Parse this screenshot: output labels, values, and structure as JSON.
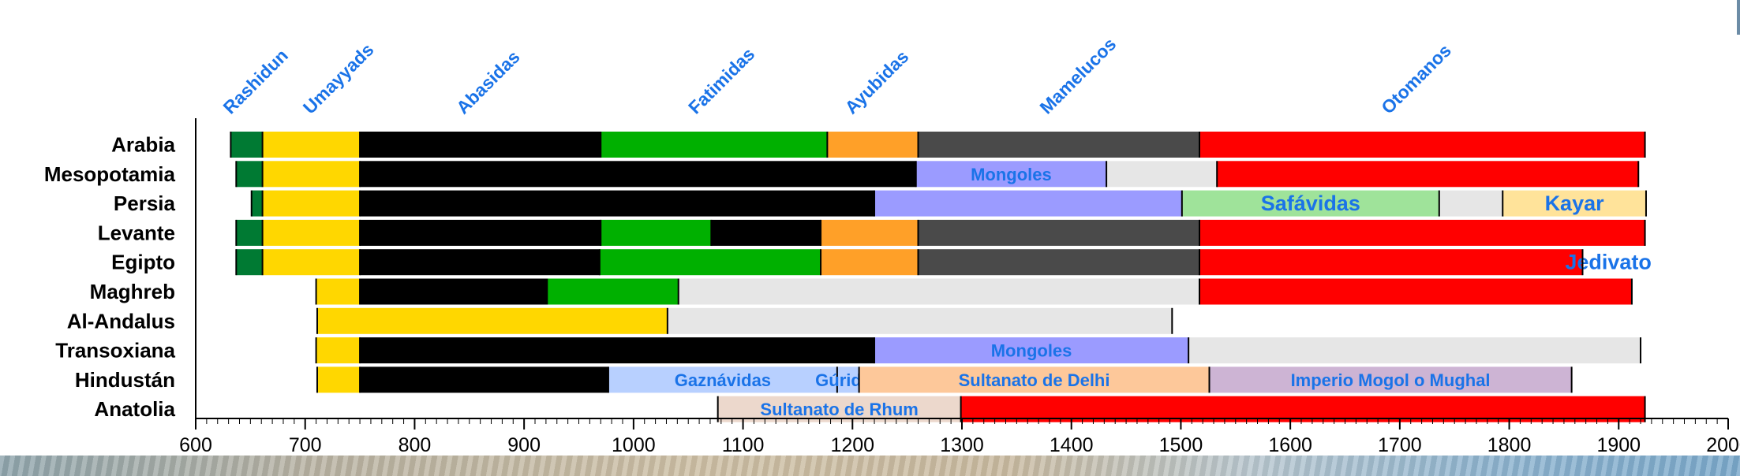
{
  "colors": {
    "rashidun": "#007a33",
    "umayyads": "#ffd700",
    "abasidas": "#000000",
    "fatimidas": "#00b000",
    "ayubidas": "#ffa028",
    "mamelucos": "#4a4a4a",
    "otomanos": "#ff0000",
    "mongoles": "#9b9bff",
    "safavidas": "#9fe39a",
    "kayar": "#ffe39a",
    "other": "#e6e6e6",
    "gaznavidas": "#b8d0ff",
    "sultanato_delhi": "#fdc89a",
    "mogol": "#cdb4d4",
    "rhum": "#ecd8cc",
    "label_blue": "#1a73e8"
  },
  "chart_data": {
    "type": "bar",
    "orientation": "horizontal",
    "stacked": true,
    "title": "",
    "xlabel": "",
    "ylabel": "",
    "xlim": [
      600,
      2000
    ],
    "xticks": [
      600,
      700,
      800,
      900,
      1000,
      1100,
      1200,
      1300,
      1400,
      1500,
      1600,
      1700,
      1800,
      1900,
      2000
    ],
    "grid": false,
    "dynasty_labels": [
      {
        "label": "Rashidun",
        "x": 632
      },
      {
        "label": "Umayyads",
        "x": 705
      },
      {
        "label": "Abasidas",
        "x": 845
      },
      {
        "label": "Fatimidas",
        "x": 1057
      },
      {
        "label": "Ayubidas",
        "x": 1200
      },
      {
        "label": "Mamelucos",
        "x": 1378
      },
      {
        "label": "Otomanos",
        "x": 1690
      }
    ],
    "rows": [
      {
        "name": "Arabia",
        "segments": [
          {
            "start": 632,
            "end": 661,
            "color": "rashidun"
          },
          {
            "start": 661,
            "end": 750,
            "color": "umayyads"
          },
          {
            "start": 750,
            "end": 970,
            "color": "abasidas"
          },
          {
            "start": 970,
            "end": 1177,
            "color": "fatimidas"
          },
          {
            "start": 1177,
            "end": 1260,
            "color": "ayubidas"
          },
          {
            "start": 1260,
            "end": 1517,
            "color": "mamelucos"
          },
          {
            "start": 1517,
            "end": 1924,
            "color": "otomanos"
          }
        ]
      },
      {
        "name": "Mesopotamia",
        "segments": [
          {
            "start": 637,
            "end": 661,
            "color": "rashidun"
          },
          {
            "start": 661,
            "end": 750,
            "color": "umayyads"
          },
          {
            "start": 750,
            "end": 1258,
            "color": "abasidas"
          },
          {
            "start": 1258,
            "end": 1432,
            "color": "mongoles",
            "label": "Mongoles"
          },
          {
            "start": 1432,
            "end": 1533,
            "color": "other"
          },
          {
            "start": 1533,
            "end": 1918,
            "color": "otomanos"
          }
        ]
      },
      {
        "name": "Persia",
        "segments": [
          {
            "start": 651,
            "end": 661,
            "color": "rashidun"
          },
          {
            "start": 661,
            "end": 750,
            "color": "umayyads"
          },
          {
            "start": 750,
            "end": 1220,
            "color": "abasidas"
          },
          {
            "start": 1220,
            "end": 1501,
            "color": "mongoles"
          },
          {
            "start": 1501,
            "end": 1736,
            "color": "safavidas",
            "label": "Safávidas"
          },
          {
            "start": 1736,
            "end": 1794,
            "color": "other"
          },
          {
            "start": 1794,
            "end": 1925,
            "color": "kayar",
            "label": "Kayar"
          }
        ]
      },
      {
        "name": "Levante",
        "segments": [
          {
            "start": 637,
            "end": 661,
            "color": "rashidun"
          },
          {
            "start": 661,
            "end": 750,
            "color": "umayyads"
          },
          {
            "start": 750,
            "end": 970,
            "color": "abasidas"
          },
          {
            "start": 970,
            "end": 1071,
            "color": "fatimidas"
          },
          {
            "start": 1071,
            "end": 1171,
            "color": "abasidas"
          },
          {
            "start": 1171,
            "end": 1260,
            "color": "ayubidas"
          },
          {
            "start": 1260,
            "end": 1517,
            "color": "mamelucos"
          },
          {
            "start": 1517,
            "end": 1924,
            "color": "otomanos"
          }
        ]
      },
      {
        "name": "Egipto",
        "segments": [
          {
            "start": 637,
            "end": 661,
            "color": "rashidun"
          },
          {
            "start": 661,
            "end": 750,
            "color": "umayyads"
          },
          {
            "start": 750,
            "end": 969,
            "color": "abasidas"
          },
          {
            "start": 969,
            "end": 1171,
            "color": "fatimidas"
          },
          {
            "start": 1171,
            "end": 1260,
            "color": "ayubidas"
          },
          {
            "start": 1260,
            "end": 1517,
            "color": "mamelucos"
          },
          {
            "start": 1517,
            "end": 1867,
            "color": "otomanos"
          },
          {
            "start": 1867,
            "end": 1914,
            "color": "none",
            "label": "Jedivato"
          }
        ]
      },
      {
        "name": "Maghreb",
        "segments": [
          {
            "start": 710,
            "end": 750,
            "color": "umayyads"
          },
          {
            "start": 750,
            "end": 921,
            "color": "abasidas"
          },
          {
            "start": 921,
            "end": 1041,
            "color": "fatimidas"
          },
          {
            "start": 1041,
            "end": 1517,
            "color": "other"
          },
          {
            "start": 1517,
            "end": 1912,
            "color": "otomanos"
          }
        ]
      },
      {
        "name": "Al-Andalus",
        "segments": [
          {
            "start": 711,
            "end": 1031,
            "color": "umayyads"
          },
          {
            "start": 1031,
            "end": 1492,
            "color": "other"
          }
        ]
      },
      {
        "name": "Transoxiana",
        "segments": [
          {
            "start": 710,
            "end": 750,
            "color": "umayyads"
          },
          {
            "start": 750,
            "end": 1220,
            "color": "abasidas"
          },
          {
            "start": 1220,
            "end": 1507,
            "color": "mongoles",
            "label": "Mongoles"
          },
          {
            "start": 1507,
            "end": 1920,
            "color": "other"
          }
        ]
      },
      {
        "name": "Hindustán",
        "segments": [
          {
            "start": 711,
            "end": 750,
            "color": "umayyads"
          },
          {
            "start": 750,
            "end": 977,
            "color": "abasidas"
          },
          {
            "start": 977,
            "end": 1186,
            "color": "gaznavidas",
            "label": "Gaznávidas"
          },
          {
            "start": 1186,
            "end": 1206,
            "color": "gaznavidas",
            "label": "Gúridas"
          },
          {
            "start": 1206,
            "end": 1526,
            "color": "sultanato_delhi",
            "label": "Sultanato de Delhi"
          },
          {
            "start": 1526,
            "end": 1857,
            "color": "mogol",
            "label": "Imperio Mogol o Mughal"
          }
        ]
      },
      {
        "name": "Anatolia",
        "segments": [
          {
            "start": 1077,
            "end": 1299,
            "color": "rhum",
            "label": "Sultanato de Rhum"
          },
          {
            "start": 1299,
            "end": 1924,
            "color": "otomanos"
          }
        ]
      }
    ]
  }
}
